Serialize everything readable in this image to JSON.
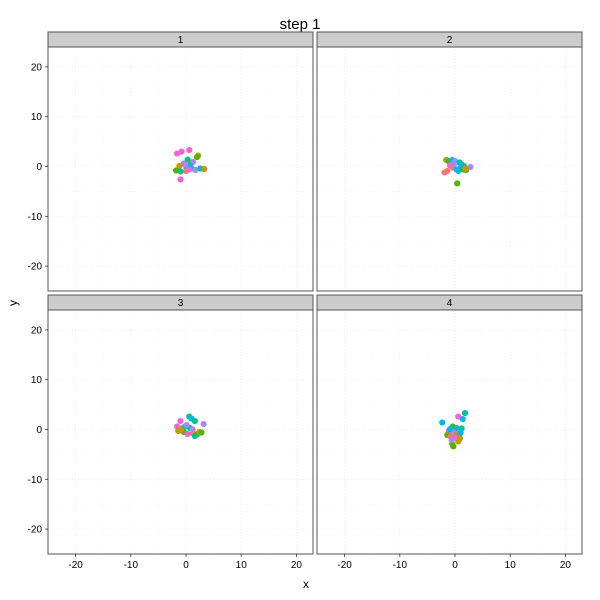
{
  "chart_data": {
    "type": "scatter",
    "title": "step 1",
    "xlabel": "x",
    "ylabel": "y",
    "xlim": [
      -25,
      23
    ],
    "ylim": [
      -25,
      24
    ],
    "x_ticks": [
      -20,
      -10,
      0,
      10,
      20
    ],
    "y_ticks": [
      -20,
      -10,
      0,
      10,
      20
    ],
    "grid": true,
    "colors": {
      "point_palette": [
        "#F8766D",
        "#C49A00",
        "#53B400",
        "#00C094",
        "#00B6EB",
        "#A58AFF",
        "#FB61D7"
      ],
      "strip_fill": "#cccccc",
      "panel_border": "#555555",
      "grid": "#ebebeb"
    },
    "panels": [
      {
        "label": "1",
        "points": [
          {
            "x": -1.6,
            "y": 2.6,
            "c": 6
          },
          {
            "x": -0.8,
            "y": 3.0,
            "c": 6
          },
          {
            "x": 0.6,
            "y": 3.3,
            "c": 6
          },
          {
            "x": 2.2,
            "y": 2.2,
            "c": 1
          },
          {
            "x": 2.0,
            "y": 1.9,
            "c": 2
          },
          {
            "x": 0.3,
            "y": 1.4,
            "c": 3
          },
          {
            "x": 0.9,
            "y": 0.8,
            "c": 2
          },
          {
            "x": 1.3,
            "y": 0.9,
            "c": 5
          },
          {
            "x": -0.4,
            "y": 0.6,
            "c": 6
          },
          {
            "x": -1.2,
            "y": 0.1,
            "c": 1
          },
          {
            "x": 0.1,
            "y": -0.2,
            "c": 3
          },
          {
            "x": 0.7,
            "y": 0.2,
            "c": 4
          },
          {
            "x": 1.0,
            "y": -0.4,
            "c": 4
          },
          {
            "x": 1.7,
            "y": -0.7,
            "c": 5
          },
          {
            "x": 2.6,
            "y": -0.4,
            "c": 4
          },
          {
            "x": 3.3,
            "y": -0.5,
            "c": 1
          },
          {
            "x": 0.0,
            "y": -0.9,
            "c": 0
          },
          {
            "x": -1.8,
            "y": -0.8,
            "c": 2
          },
          {
            "x": -1.0,
            "y": -1.0,
            "c": 3
          },
          {
            "x": 0.5,
            "y": -0.6,
            "c": 6
          },
          {
            "x": -1.0,
            "y": -2.6,
            "c": 6
          },
          {
            "x": -0.2,
            "y": 0.4,
            "c": 5
          }
        ]
      },
      {
        "label": "2",
        "points": [
          {
            "x": -1.6,
            "y": 1.3,
            "c": 1
          },
          {
            "x": -1.2,
            "y": 1.1,
            "c": 2
          },
          {
            "x": -0.5,
            "y": 1.3,
            "c": 4
          },
          {
            "x": 0.0,
            "y": 1.1,
            "c": 5
          },
          {
            "x": 0.8,
            "y": 0.8,
            "c": 3
          },
          {
            "x": 1.2,
            "y": 0.4,
            "c": 4
          },
          {
            "x": -0.9,
            "y": 0.2,
            "c": 6
          },
          {
            "x": -0.4,
            "y": -0.2,
            "c": 0
          },
          {
            "x": -1.4,
            "y": -0.9,
            "c": 0
          },
          {
            "x": -1.9,
            "y": -1.2,
            "c": 0
          },
          {
            "x": 0.3,
            "y": -0.6,
            "c": 4
          },
          {
            "x": 1.0,
            "y": -0.3,
            "c": 4
          },
          {
            "x": 1.5,
            "y": -0.6,
            "c": 2
          },
          {
            "x": 2.0,
            "y": -0.7,
            "c": 2
          },
          {
            "x": 2.8,
            "y": -0.1,
            "c": 5
          },
          {
            "x": 0.6,
            "y": -0.9,
            "c": 4
          },
          {
            "x": 1.6,
            "y": 0.1,
            "c": 3
          },
          {
            "x": 0.4,
            "y": -3.4,
            "c": 2
          },
          {
            "x": -0.2,
            "y": 0.5,
            "c": 5
          },
          {
            "x": 1.9,
            "y": -0.4,
            "c": 1
          }
        ]
      },
      {
        "label": "3",
        "points": [
          {
            "x": 0.6,
            "y": 2.6,
            "c": 3
          },
          {
            "x": 1.0,
            "y": 2.2,
            "c": 4
          },
          {
            "x": -1.0,
            "y": 1.7,
            "c": 6
          },
          {
            "x": 1.6,
            "y": 1.7,
            "c": 3
          },
          {
            "x": 3.2,
            "y": 1.1,
            "c": 5
          },
          {
            "x": -1.6,
            "y": 0.6,
            "c": 6
          },
          {
            "x": -0.8,
            "y": 0.2,
            "c": 0
          },
          {
            "x": -0.2,
            "y": 0.6,
            "c": 4
          },
          {
            "x": 0.7,
            "y": 0.3,
            "c": 3
          },
          {
            "x": 1.2,
            "y": 0.0,
            "c": 5
          },
          {
            "x": -1.4,
            "y": -0.3,
            "c": 1
          },
          {
            "x": -0.4,
            "y": -0.5,
            "c": 2
          },
          {
            "x": 0.3,
            "y": -0.9,
            "c": 6
          },
          {
            "x": 1.3,
            "y": -0.8,
            "c": 0
          },
          {
            "x": 2.0,
            "y": -1.0,
            "c": 2
          },
          {
            "x": 2.4,
            "y": -0.5,
            "c": 1
          },
          {
            "x": 1.6,
            "y": -1.3,
            "c": 3
          },
          {
            "x": 2.8,
            "y": -0.6,
            "c": 2
          },
          {
            "x": 0.1,
            "y": 0.9,
            "c": 5
          },
          {
            "x": -0.9,
            "y": -0.1,
            "c": 1
          }
        ]
      },
      {
        "label": "4",
        "points": [
          {
            "x": 1.8,
            "y": 3.3,
            "c": 3
          },
          {
            "x": 0.6,
            "y": 2.6,
            "c": 6
          },
          {
            "x": 1.4,
            "y": 2.1,
            "c": 4
          },
          {
            "x": -2.3,
            "y": 1.4,
            "c": 4
          },
          {
            "x": -0.4,
            "y": 0.6,
            "c": 2
          },
          {
            "x": 0.3,
            "y": 0.3,
            "c": 4
          },
          {
            "x": 1.2,
            "y": 0.2,
            "c": 3
          },
          {
            "x": -1.1,
            "y": -0.2,
            "c": 6
          },
          {
            "x": -0.3,
            "y": -0.6,
            "c": 5
          },
          {
            "x": 0.4,
            "y": -0.8,
            "c": 1
          },
          {
            "x": 1.0,
            "y": -0.7,
            "c": 4
          },
          {
            "x": -1.4,
            "y": -1.1,
            "c": 2
          },
          {
            "x": -0.8,
            "y": -1.4,
            "c": 0
          },
          {
            "x": 0.0,
            "y": -1.6,
            "c": 6
          },
          {
            "x": 0.9,
            "y": -1.8,
            "c": 1
          },
          {
            "x": 0.6,
            "y": -2.4,
            "c": 1
          },
          {
            "x": -0.5,
            "y": -2.9,
            "c": 2
          },
          {
            "x": -0.3,
            "y": -3.4,
            "c": 2
          },
          {
            "x": -0.6,
            "y": -2.1,
            "c": 5
          },
          {
            "x": -0.9,
            "y": 0.1,
            "c": 4
          }
        ]
      }
    ]
  }
}
